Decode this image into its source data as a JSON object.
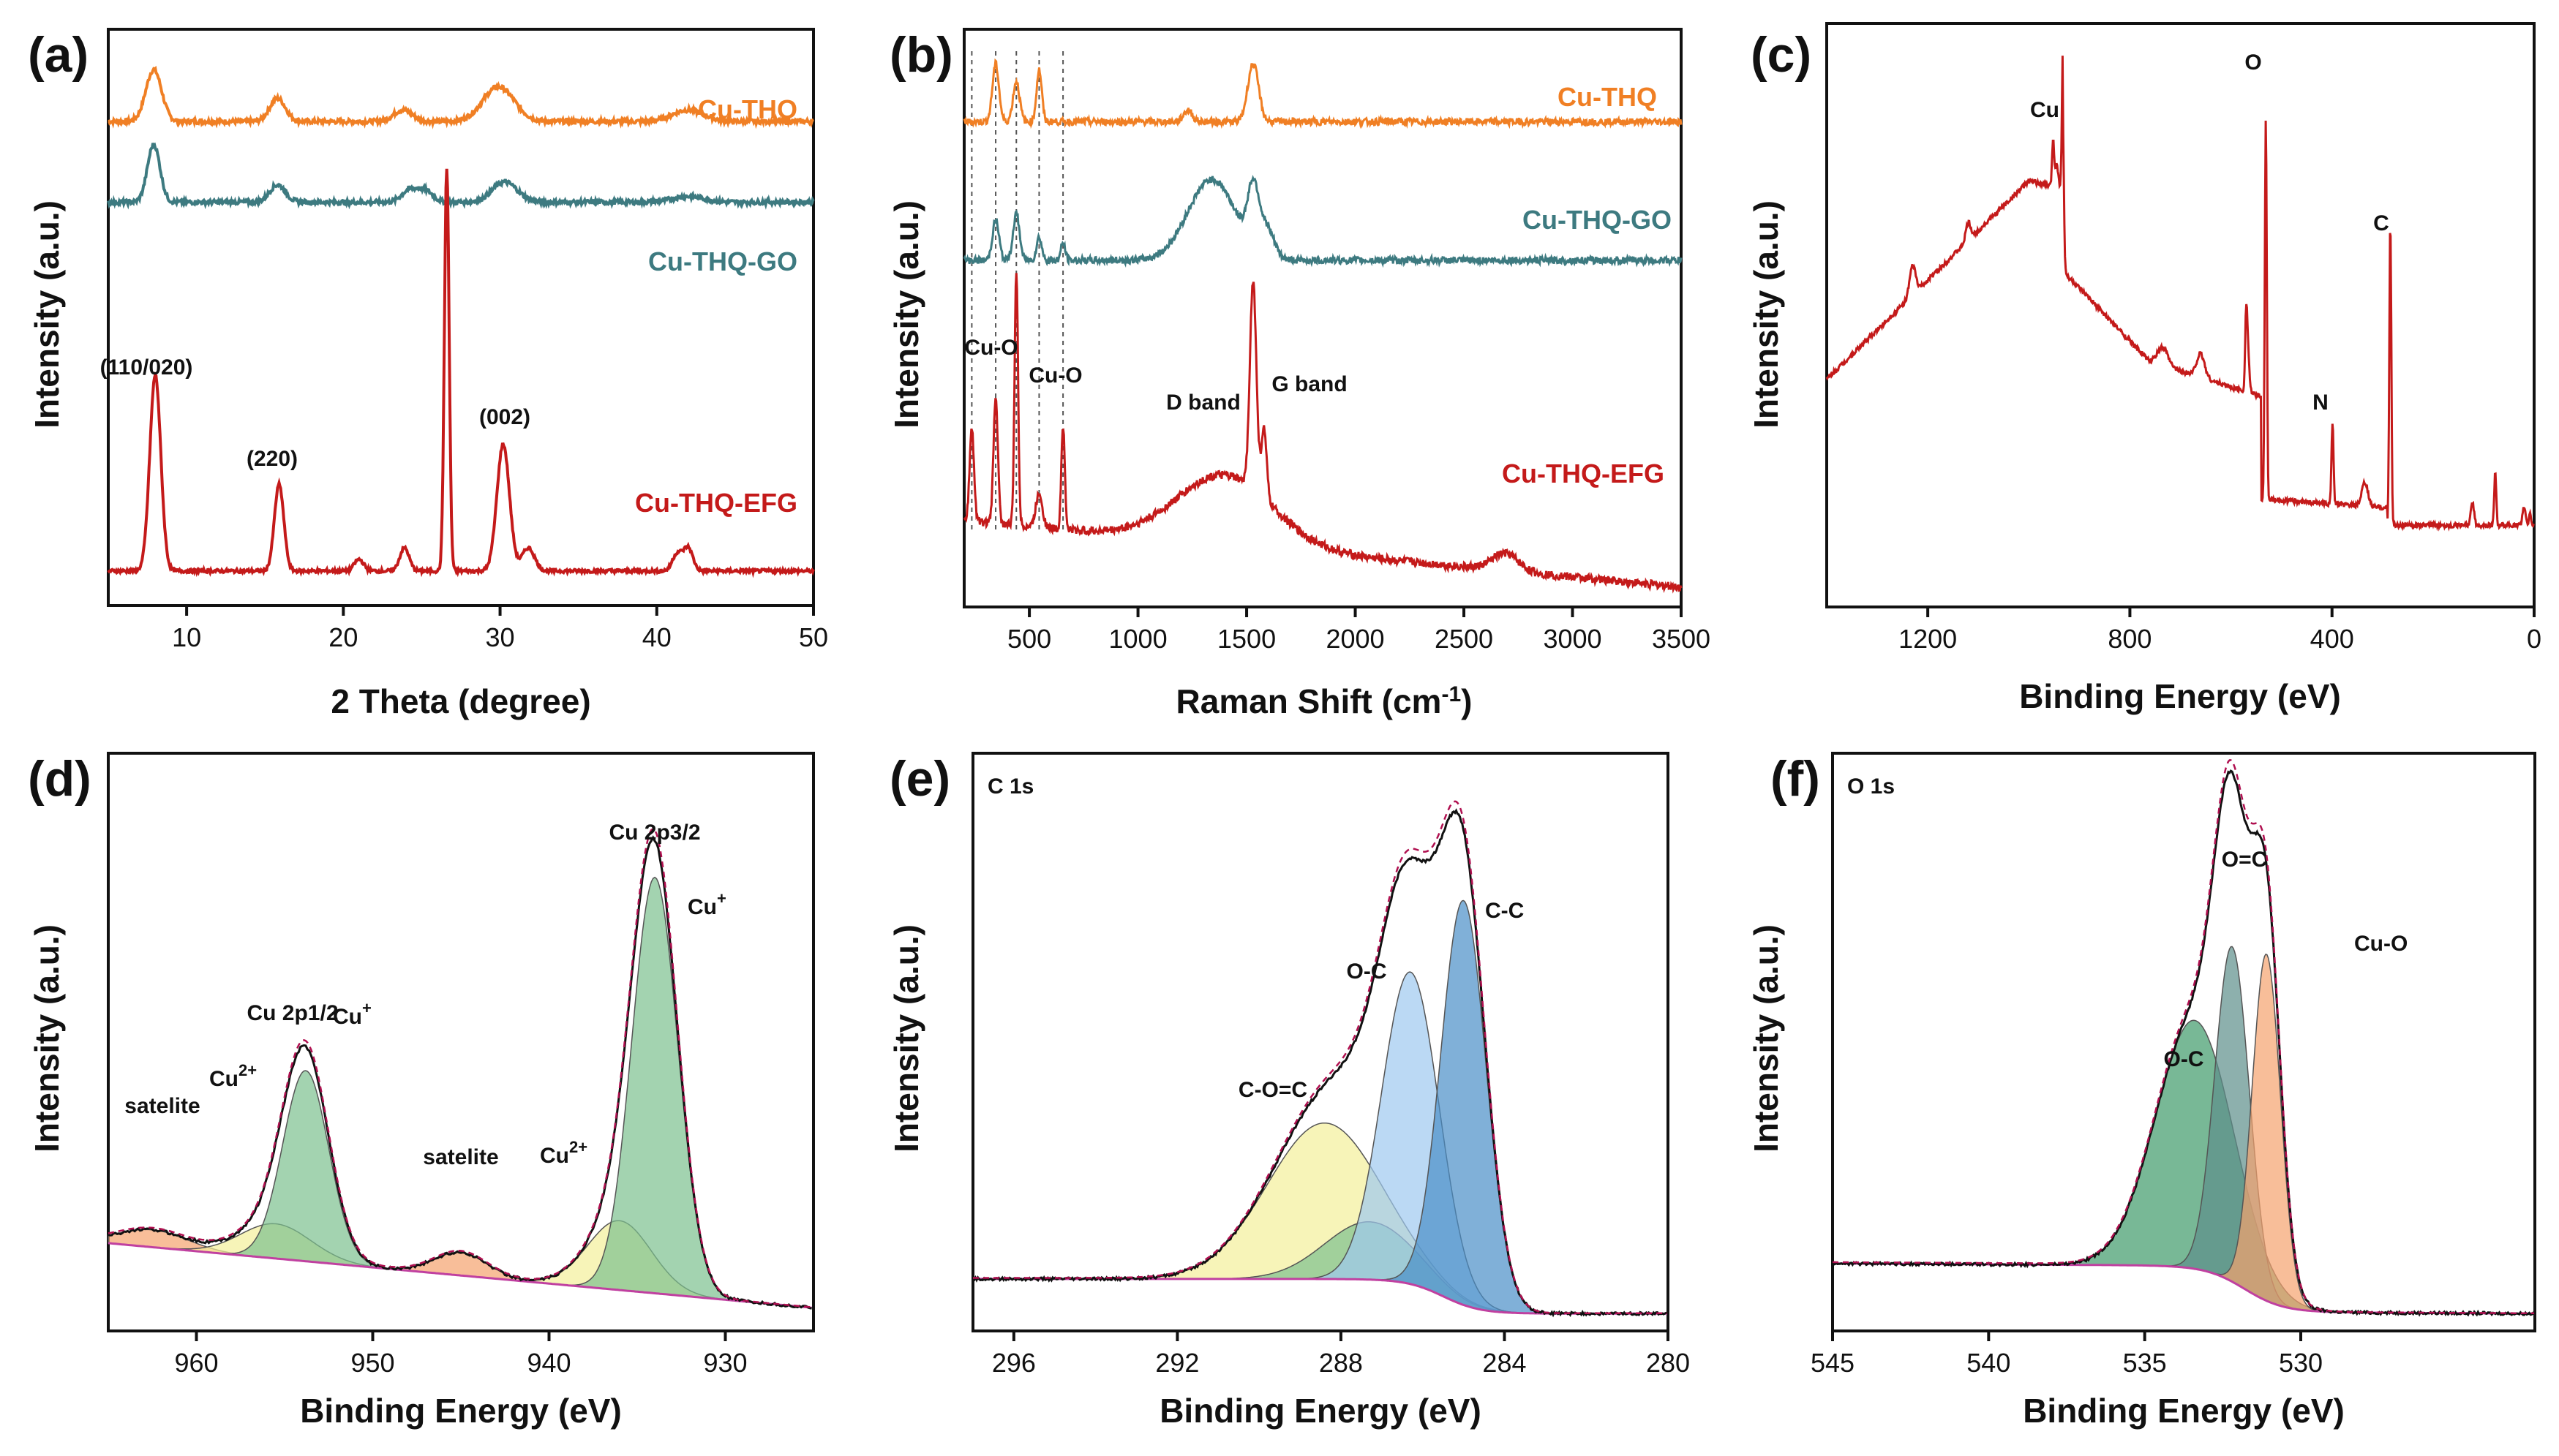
{
  "figure": "XRD, Raman and XPS characterization panels",
  "colors": {
    "cu_thq": "#f07f24",
    "cu_thq_go": "#3d7a80",
    "cu_thq_efg": "#c41a1a",
    "survey": "#c41a1a",
    "background": "#c040a0",
    "envelope": "#111111",
    "fit_dash": "#b01050",
    "green": "#7cc08f",
    "yellow": "#f4f09a",
    "orange": "#f5a26e",
    "blue_light": "#9ec9ef",
    "blue_dark": "#4a8fc8",
    "green_dark": "#3e9a6a",
    "teal_grey": "#5c8f8a"
  },
  "chart_data": [
    {
      "id": "a",
      "letter": "(a)",
      "type": "line",
      "technique": "XRD",
      "xlabel": "2 Theta (degree)",
      "ylabel": "Intensity (a.u.)",
      "xlim": [
        5,
        50
      ],
      "ylim": [
        0,
        100
      ],
      "xticks": [
        10,
        20,
        30,
        40,
        50
      ],
      "series": [
        {
          "name": "Cu-THQ",
          "color": "cu_thq",
          "baseline": 84,
          "noise": 0.4,
          "peaks": [
            [
              7.9,
              9,
              0.5
            ],
            [
              15.8,
              4,
              0.5
            ],
            [
              23.8,
              2,
              0.6
            ],
            [
              29.9,
              6,
              1.0
            ],
            [
              42,
              2,
              1.0
            ]
          ]
        },
        {
          "name": "Cu-THQ-GO",
          "color": "cu_thq_go",
          "baseline": 70,
          "noise": 0.4,
          "peaks": [
            [
              7.9,
              10,
              0.4
            ],
            [
              15.8,
              3,
              0.5
            ],
            [
              24.2,
              2,
              0.5
            ],
            [
              25.2,
              2,
              0.5
            ],
            [
              30.3,
              3.5,
              0.8
            ],
            [
              42,
              1,
              1.0
            ]
          ]
        },
        {
          "name": "Cu-THQ-EFG",
          "color": "cu_thq_efg",
          "baseline": 6,
          "noise": 0.3,
          "peaks": [
            [
              8.0,
              34,
              0.35
            ],
            [
              15.9,
              15,
              0.3
            ],
            [
              21.0,
              2,
              0.3
            ],
            [
              23.9,
              4,
              0.3
            ],
            [
              26.6,
              70,
              0.15
            ],
            [
              30.2,
              22,
              0.4
            ],
            [
              31.8,
              4,
              0.4
            ],
            [
              42.0,
              4,
              0.3
            ],
            [
              41.3,
              3,
              0.3
            ]
          ]
        }
      ],
      "annotations": [
        "(110/020)",
        "(220)",
        "(002)"
      ]
    },
    {
      "id": "b",
      "letter": "(b)",
      "type": "line",
      "technique": "Raman",
      "xlabel": "Raman Shift (cm",
      "xlabel_sup": "-1",
      "xlabel_end": ")",
      "ylabel": "Intensity (a.u.)",
      "xlim": [
        200,
        3500
      ],
      "ylim": [
        0,
        100
      ],
      "xticks": [
        500,
        1000,
        1500,
        2000,
        2500,
        3000,
        3500
      ],
      "dashed_lines": [
        235,
        345,
        440,
        545,
        655
      ],
      "series": [
        {
          "name": "Cu-THQ",
          "color": "cu_thq",
          "baseline": 84,
          "noise": 0.6,
          "peaks": [
            [
              345,
              10,
              15
            ],
            [
              440,
              7,
              15
            ],
            [
              545,
              9,
              12
            ],
            [
              1530,
              10,
              25
            ],
            [
              1230,
              2,
              20
            ]
          ]
        },
        {
          "name": "Cu-THQ-GO",
          "color": "cu_thq_go",
          "baseline": 60,
          "noise": 0.6,
          "peaks": [
            [
              345,
              7,
              15
            ],
            [
              440,
              8,
              15
            ],
            [
              545,
              4,
              12
            ],
            [
              655,
              3,
              10
            ],
            [
              1340,
              14,
              110
            ],
            [
              1530,
              10,
              25
            ],
            [
              1590,
              5,
              35
            ]
          ]
        },
        {
          "name": "Cu-THQ-EFG",
          "color": "cu_thq_efg",
          "baseline": 15,
          "slope": -0.0035,
          "noise": 0.7,
          "peaks": [
            [
              235,
              16,
              10
            ],
            [
              345,
              22,
              10
            ],
            [
              440,
              44,
              8
            ],
            [
              545,
              6,
              15
            ],
            [
              655,
              18,
              8
            ],
            [
              1400,
              12,
              220
            ],
            [
              1530,
              36,
              15
            ],
            [
              1580,
              12,
              12
            ],
            [
              2690,
              3,
              60
            ]
          ]
        }
      ],
      "annotations": [
        "Cu-O",
        "Cu-O",
        "D band",
        "G band"
      ]
    },
    {
      "id": "c",
      "letter": "(c)",
      "type": "line",
      "technique": "XPS survey",
      "xlabel": "Binding Energy (eV)",
      "ylabel": "Intensity (a.u.)",
      "xlim": [
        1400,
        0
      ],
      "ylim": [
        0,
        100
      ],
      "xticks": [
        1200,
        800,
        400,
        0
      ],
      "peak_labels": [
        "Cu",
        "O",
        "N",
        "C"
      ]
    },
    {
      "id": "d",
      "letter": "(d)",
      "type": "area",
      "technique": "XPS Cu 2p",
      "xlabel": "Binding Energy (eV)",
      "ylabel": "Intensity (a.u.)",
      "xlim": [
        965,
        925
      ],
      "ylim": [
        0,
        100
      ],
      "xticks": [
        960,
        950,
        940,
        930
      ],
      "components": [
        {
          "name": "Cu+",
          "center": 934.0,
          "height": 72,
          "width": 1.3,
          "fill": "green",
          "order": 2
        },
        {
          "name": "Cu2+",
          "center": 936.0,
          "height": 12,
          "width": 1.8,
          "fill": "yellow",
          "order": 1
        },
        {
          "name": "satelite",
          "center": 945.0,
          "height": 4,
          "width": 1.5,
          "fill": "orange",
          "order": 0
        },
        {
          "name": "Cu+",
          "center": 953.8,
          "height": 33,
          "width": 1.3,
          "fill": "green",
          "order": 2
        },
        {
          "name": "Cu2+",
          "center": 955.5,
          "height": 6,
          "width": 2.0,
          "fill": "yellow",
          "order": 1
        },
        {
          "name": "satelite",
          "center": 962.5,
          "height": 3,
          "width": 2.0,
          "fill": "orange",
          "order": 0
        }
      ],
      "labels": [
        "Cu 2p3/2",
        "Cu 2p1/2",
        "Cu",
        "Cu",
        "Cu",
        "Cu",
        "satelite",
        "satelite",
        "+",
        "+",
        "2+",
        "2+"
      ]
    },
    {
      "id": "e",
      "letter": "(e)",
      "type": "area",
      "technique": "XPS C 1s",
      "title": "C 1s",
      "xlabel": "Binding Energy (eV)",
      "ylabel": "Intensity (a.u.)",
      "xlim": [
        297,
        280
      ],
      "ylim": [
        0,
        100
      ],
      "xticks": [
        296,
        292,
        288,
        284,
        280
      ],
      "components": [
        {
          "name": "C-O=C",
          "center": 288.4,
          "height": 27,
          "width": 1.4,
          "fill": "yellow"
        },
        {
          "name": "C-O=C tail",
          "center": 287.3,
          "height": 10,
          "width": 1.1,
          "fill": "green"
        },
        {
          "name": "O-C",
          "center": 286.3,
          "height": 54,
          "width": 0.7,
          "fill": "blue_light"
        },
        {
          "name": "C-C",
          "center": 285.0,
          "height": 70,
          "width": 0.55,
          "fill": "blue_dark"
        }
      ],
      "labels": [
        "C-C",
        "O-C",
        "C-O=C"
      ]
    },
    {
      "id": "f",
      "letter": "(f)",
      "type": "area",
      "technique": "XPS O 1s",
      "title": "O 1s",
      "xlabel": "Binding Energy (eV)",
      "ylabel": "Intensity (a.u.)",
      "xlim": [
        545,
        522.5
      ],
      "ylim": [
        0,
        100
      ],
      "xticks": [
        545,
        540,
        535,
        530
      ],
      "components": [
        {
          "name": "O-C",
          "center": 533.4,
          "height": 43,
          "width": 1.25,
          "fill": "green_dark"
        },
        {
          "name": "O=C",
          "center": 532.2,
          "height": 58,
          "width": 0.55,
          "fill": "teal_grey"
        },
        {
          "name": "Cu-O",
          "center": 531.1,
          "height": 60,
          "width": 0.45,
          "fill": "orange"
        }
      ],
      "labels": [
        "O=C",
        "Cu-O",
        "O-C"
      ]
    }
  ]
}
